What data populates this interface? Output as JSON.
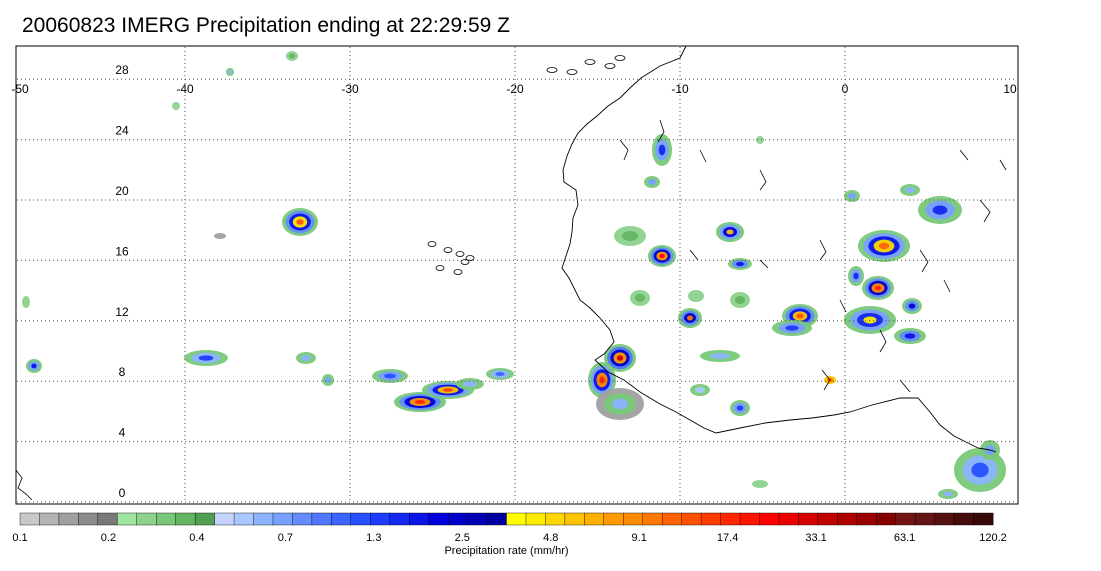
{
  "title": "20060823 IMERG Precipitation ending at 22:29:59 Z",
  "map": {
    "lon_range": [
      -50,
      10
    ],
    "lat_range": [
      -1,
      31
    ],
    "lon_ticks": [
      "-50",
      "-40",
      "-30",
      "-20",
      "-10",
      "0",
      "10"
    ],
    "lat_ticks": [
      "28",
      "24",
      "20",
      "16",
      "12",
      "8",
      "4",
      "0"
    ],
    "grid": "dotted"
  },
  "colorbar": {
    "title": "Precipitation rate (mm/hr)",
    "tick_labels": [
      "0.1",
      "0.2",
      "0.4",
      "0.7",
      "1.3",
      "2.5",
      "4.8",
      "9.1",
      "17.4",
      "33.1",
      "63.1",
      "120.2"
    ],
    "colors": [
      "#c8c8c8",
      "#b4b4b4",
      "#a0a0a0",
      "#8c8c8c",
      "#787878",
      "#a0e6a0",
      "#8cd28c",
      "#78c878",
      "#64b464",
      "#50a050",
      "#c8d2ff",
      "#a8c8ff",
      "#8cb4ff",
      "#78a0ff",
      "#648cff",
      "#5078ff",
      "#3c64ff",
      "#2850ff",
      "#1e3cff",
      "#1428f0",
      "#0a14e6",
      "#0000dc",
      "#0000c8",
      "#0000b4",
      "#0000a0",
      "#ffff00",
      "#ffeb00",
      "#ffd700",
      "#ffc300",
      "#ffaf00",
      "#ff9b00",
      "#ff8c00",
      "#ff7800",
      "#ff6400",
      "#ff5000",
      "#ff3c00",
      "#ff2800",
      "#ff1400",
      "#ff0000",
      "#eb0000",
      "#d70000",
      "#c30000",
      "#af0000",
      "#9b0000",
      "#870000",
      "#731414",
      "#641414",
      "#551010",
      "#460c0c",
      "#370808"
    ]
  },
  "colors": {
    "coast": "#000000",
    "grid": "#555555",
    "frame": "#000000"
  }
}
